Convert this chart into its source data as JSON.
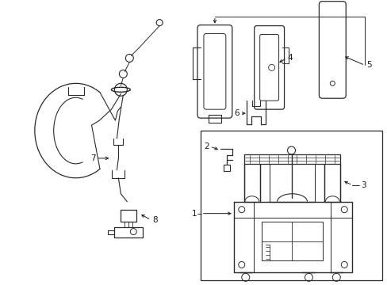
{
  "background_color": "#ffffff",
  "line_color": "#2a2a2a",
  "text_color": "#1a1a1a",
  "fig_width": 4.89,
  "fig_height": 3.6,
  "dpi": 100
}
